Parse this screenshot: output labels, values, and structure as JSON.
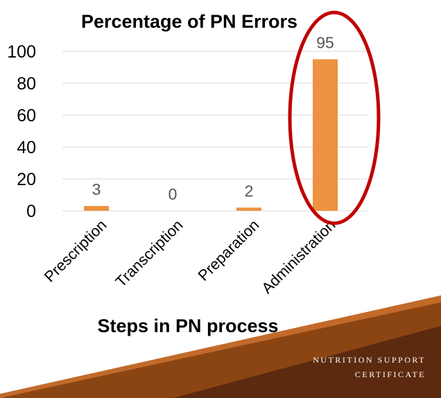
{
  "chart_data": {
    "type": "bar",
    "title": "Percentage of PN Errors",
    "xlabel": "Steps in PN process",
    "ylabel": "",
    "categories": [
      "Prescription",
      "Transcription",
      "Preparation",
      "Administration"
    ],
    "values": [
      3,
      0,
      2,
      95
    ],
    "data_labels": [
      "3",
      "0",
      "2",
      "95"
    ],
    "ylim": [
      0,
      100
    ],
    "yticks": [
      "0",
      "20",
      "40",
      "60",
      "80",
      "100"
    ],
    "grid": true,
    "legend": "none",
    "bar_color": "#ED9240",
    "highlight": {
      "category": "Administration",
      "shape": "ellipse",
      "color": "#C00000"
    }
  },
  "footer": {
    "line1": "NUTRITION SUPPORT",
    "line2": "CERTIFICATE"
  },
  "colors": {
    "gridline": "#D9D9D9",
    "banner_dark": "#5C2A0E",
    "banner_mid": "#8B4513",
    "banner_light": "#C26A2A"
  }
}
